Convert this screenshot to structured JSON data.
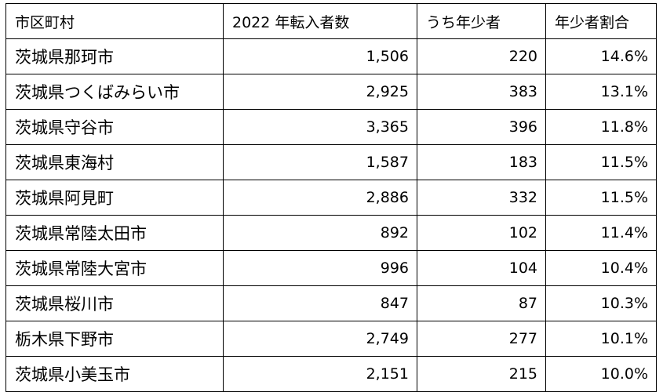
{
  "table": {
    "headers": [
      "市区町村",
      "2022 年転入者数",
      "うち年少者",
      "年少者割合"
    ],
    "rows": [
      [
        "茨城県那珂市",
        "1,506",
        "220",
        "14.6%"
      ],
      [
        "茨城県つくばみらい市",
        "2,925",
        "383",
        "13.1%"
      ],
      [
        "茨城県守谷市",
        "3,365",
        "396",
        "11.8%"
      ],
      [
        "茨城県東海村",
        "1,587",
        "183",
        "11.5%"
      ],
      [
        "茨城県阿見町",
        "2,886",
        "332",
        "11.5%"
      ],
      [
        "茨城県常陸太田市",
        "892",
        "102",
        "11.4%"
      ],
      [
        "茨城県常陸大宮市",
        "996",
        "104",
        "10.4%"
      ],
      [
        "茨城県桜川市",
        "847",
        "87",
        "10.3%"
      ],
      [
        "栃木県下野市",
        "2,749",
        "277",
        "10.1%"
      ],
      [
        "茨城県小美玉市",
        "2,151",
        "215",
        "10.0%"
      ]
    ]
  }
}
